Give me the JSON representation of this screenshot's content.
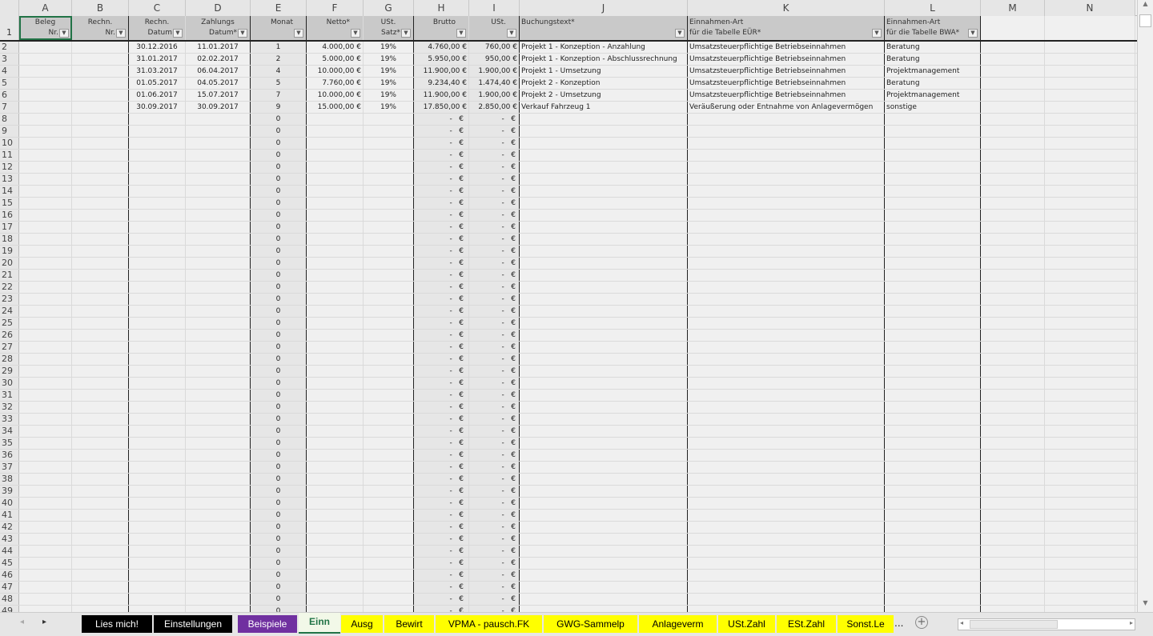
{
  "columns": [
    "A",
    "B",
    "C",
    "D",
    "E",
    "F",
    "G",
    "H",
    "I",
    "J",
    "K",
    "L",
    "M",
    "N"
  ],
  "headers": [
    {
      "l1": "Beleg",
      "l2": "Nr."
    },
    {
      "l1": "Rechn.",
      "l2": "Nr."
    },
    {
      "l1": "Rechn.",
      "l2": "Datum"
    },
    {
      "l1": "Zahlungs",
      "l2": "Datum*"
    },
    {
      "l1": "",
      "l2": "Monat"
    },
    {
      "l1": "",
      "l2": "Netto*"
    },
    {
      "l1": "USt.",
      "l2": "Satz*"
    },
    {
      "l1": "",
      "l2": "Brutto"
    },
    {
      "l1": "",
      "l2": "USt."
    },
    {
      "l1": "Buchungstext*",
      "l2": ""
    },
    {
      "l1": "Einnahmen-Art",
      "l2": "für die Tabelle EÜR*"
    },
    {
      "l1": "Einnahmen-Art",
      "l2": "für die Tabelle BWA*"
    }
  ],
  "rows": [
    [
      "",
      "",
      "30.12.2016",
      "11.01.2017",
      "1",
      "4.000,00 €",
      "19%",
      "4.760,00 €",
      "760,00 €",
      "Projekt 1 - Konzeption - Anzahlung",
      "Umsatzsteuerpflichtige Betriebseinnahmen",
      "Beratung"
    ],
    [
      "",
      "",
      "31.01.2017",
      "02.02.2017",
      "2",
      "5.000,00 €",
      "19%",
      "5.950,00 €",
      "950,00 €",
      "Projekt 1 - Konzeption - Abschlussrechnung",
      "Umsatzsteuerpflichtige Betriebseinnahmen",
      "Beratung"
    ],
    [
      "",
      "",
      "31.03.2017",
      "06.04.2017",
      "4",
      "10.000,00 €",
      "19%",
      "11.900,00 €",
      "1.900,00 €",
      "Projekt 1 - Umsetzung",
      "Umsatzsteuerpflichtige Betriebseinnahmen",
      "Projektmanagement"
    ],
    [
      "",
      "",
      "01.05.2017",
      "04.05.2017",
      "5",
      "7.760,00 €",
      "19%",
      "9.234,40 €",
      "1.474,40 €",
      "Projekt 2 - Konzeption",
      "Umsatzsteuerpflichtige Betriebseinnahmen",
      "Beratung"
    ],
    [
      "",
      "",
      "01.06.2017",
      "15.07.2017",
      "7",
      "10.000,00 €",
      "19%",
      "11.900,00 €",
      "1.900,00 €",
      "Projekt 2 - Umsetzung",
      "Umsatzsteuerpflichtige Betriebseinnahmen",
      "Projektmanagement"
    ],
    [
      "",
      "",
      "30.09.2017",
      "30.09.2017",
      "9",
      "15.000,00 €",
      "19%",
      "17.850,00 €",
      "2.850,00 €",
      "Verkauf Fahrzeug 1",
      "Veräußerung oder Entnahme von Anlagevermögen",
      "sonstige"
    ]
  ],
  "empty_rows": {
    "first": 8,
    "last": 49,
    "monat": "0",
    "brutto": "-   €",
    "ust": "-   €"
  },
  "tabs": [
    {
      "label": "Lies mich!",
      "bg": "#000000",
      "fg": "#ffffff"
    },
    {
      "label": "Einstellungen",
      "bg": "#000000",
      "fg": "#ffffff"
    },
    {
      "label": "Beispiele",
      "bg": "#7030a0",
      "fg": "#ffffff"
    },
    {
      "label": "Einn",
      "bg": "#f2f8e8",
      "fg": "#217346",
      "active": true
    },
    {
      "label": "Ausg",
      "bg": "#ffff00",
      "fg": "#000000"
    },
    {
      "label": "Bewirt",
      "bg": "#ffff00",
      "fg": "#000000"
    },
    {
      "label": "VPMA - pausch.FK",
      "bg": "#ffff00",
      "fg": "#000000"
    },
    {
      "label": "GWG-Sammelp",
      "bg": "#ffff00",
      "fg": "#000000"
    },
    {
      "label": "Anlageverm",
      "bg": "#ffff00",
      "fg": "#000000"
    },
    {
      "label": "USt.Zahl",
      "bg": "#ffff00",
      "fg": "#000000"
    },
    {
      "label": "ESt.Zahl",
      "bg": "#ffff00",
      "fg": "#000000"
    },
    {
      "label": "Sonst.Le",
      "bg": "#ffff00",
      "fg": "#000000"
    }
  ],
  "tabs_more": "...",
  "selection_color": "#217346"
}
